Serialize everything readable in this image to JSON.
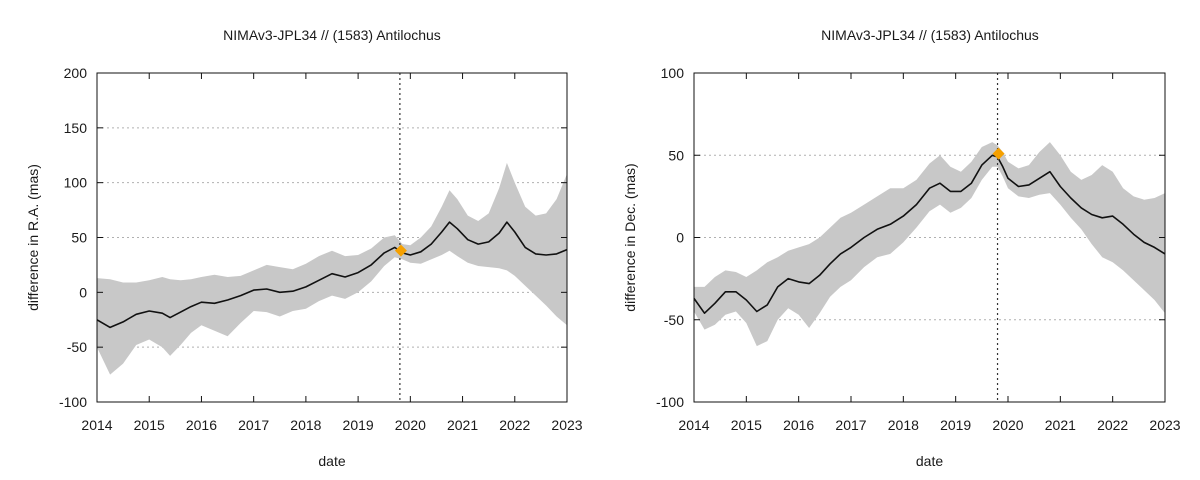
{
  "chart_data": [
    {
      "type": "line",
      "title": "NIMAv3-JPL34 // (1583) Antilochus",
      "xlabel": "date",
      "ylabel": "difference in R.A. (mas)",
      "xlim": [
        2014,
        2023
      ],
      "ylim": [
        -100,
        200
      ],
      "xticks": [
        "2014",
        "2015",
        "2016",
        "2017",
        "2018",
        "2019",
        "2020",
        "2021",
        "2022",
        "2023"
      ],
      "yticks": [
        "-100",
        "-50",
        "0",
        "50",
        "100",
        "150",
        "200"
      ],
      "grid": "horizontal dotted",
      "vline_x": 2019.8,
      "marker": {
        "x": 2019.82,
        "y": 38,
        "color": "#f5a000"
      },
      "band_color": "#c8c8c8",
      "line_color": "#111111",
      "series": [
        {
          "name": "difference",
          "x": [
            2014.0,
            2014.25,
            2014.5,
            2014.75,
            2015.0,
            2015.25,
            2015.4,
            2015.6,
            2015.8,
            2016.0,
            2016.25,
            2016.5,
            2016.75,
            2017.0,
            2017.25,
            2017.5,
            2017.75,
            2018.0,
            2018.25,
            2018.5,
            2018.75,
            2019.0,
            2019.25,
            2019.5,
            2019.7,
            2019.85,
            2020.0,
            2020.2,
            2020.4,
            2020.6,
            2020.75,
            2020.9,
            2021.1,
            2021.3,
            2021.5,
            2021.7,
            2021.85,
            2022.0,
            2022.2,
            2022.4,
            2022.6,
            2022.8,
            2023.0
          ],
          "y": [
            -25,
            -32,
            -27,
            -20,
            -17,
            -19,
            -23,
            -18,
            -13,
            -9,
            -10,
            -7,
            -3,
            2,
            3,
            0,
            1,
            5,
            11,
            17,
            14,
            18,
            25,
            36,
            41,
            36,
            34,
            37,
            44,
            55,
            64,
            58,
            48,
            44,
            46,
            54,
            64,
            55,
            41,
            35,
            34,
            35,
            39
          ]
        },
        {
          "name": "upper",
          "x": [
            2014.0,
            2014.25,
            2014.5,
            2014.75,
            2015.0,
            2015.25,
            2015.4,
            2015.6,
            2015.8,
            2016.0,
            2016.25,
            2016.5,
            2016.75,
            2017.0,
            2017.25,
            2017.5,
            2017.75,
            2018.0,
            2018.25,
            2018.5,
            2018.75,
            2019.0,
            2019.25,
            2019.5,
            2019.7,
            2019.85,
            2020.0,
            2020.2,
            2020.4,
            2020.6,
            2020.75,
            2020.9,
            2021.1,
            2021.3,
            2021.5,
            2021.7,
            2021.85,
            2022.0,
            2022.2,
            2022.4,
            2022.6,
            2022.8,
            2023.0
          ],
          "y": [
            13,
            12,
            9,
            9,
            11,
            14,
            12,
            11,
            12,
            14,
            16,
            14,
            15,
            20,
            25,
            23,
            21,
            26,
            33,
            38,
            33,
            34,
            40,
            50,
            52,
            44,
            43,
            50,
            60,
            78,
            93,
            85,
            70,
            65,
            72,
            95,
            118,
            100,
            78,
            70,
            72,
            85,
            108
          ]
        },
        {
          "name": "lower",
          "x": [
            2014.0,
            2014.25,
            2014.5,
            2014.75,
            2015.0,
            2015.25,
            2015.4,
            2015.6,
            2015.8,
            2016.0,
            2016.25,
            2016.5,
            2016.75,
            2017.0,
            2017.25,
            2017.5,
            2017.75,
            2018.0,
            2018.25,
            2018.5,
            2018.75,
            2019.0,
            2019.25,
            2019.5,
            2019.7,
            2019.85,
            2020.0,
            2020.2,
            2020.4,
            2020.6,
            2020.75,
            2020.9,
            2021.1,
            2021.3,
            2021.5,
            2021.7,
            2021.85,
            2022.0,
            2022.2,
            2022.4,
            2022.6,
            2022.8,
            2023.0
          ],
          "y": [
            -50,
            -75,
            -65,
            -48,
            -43,
            -50,
            -58,
            -48,
            -37,
            -30,
            -35,
            -40,
            -28,
            -17,
            -18,
            -22,
            -17,
            -15,
            -8,
            -3,
            -6,
            0,
            10,
            24,
            32,
            30,
            27,
            26,
            30,
            34,
            38,
            33,
            27,
            24,
            23,
            22,
            20,
            15,
            6,
            -3,
            -12,
            -22,
            -30
          ]
        }
      ]
    },
    {
      "type": "line",
      "title": "NIMAv3-JPL34 // (1583) Antilochus",
      "xlabel": "date",
      "ylabel": "difference in Dec. (mas)",
      "xlim": [
        2014,
        2023
      ],
      "ylim": [
        -100,
        100
      ],
      "xticks": [
        "2014",
        "2015",
        "2016",
        "2017",
        "2018",
        "2019",
        "2020",
        "2021",
        "2022",
        "2023"
      ],
      "yticks": [
        "-100",
        "-50",
        "0",
        "50",
        "100"
      ],
      "grid": "horizontal dotted",
      "vline_x": 2019.8,
      "marker": {
        "x": 2019.82,
        "y": 51,
        "color": "#f5a000"
      },
      "band_color": "#c8c8c8",
      "line_color": "#111111",
      "series": [
        {
          "name": "difference",
          "x": [
            2014.0,
            2014.2,
            2014.4,
            2014.6,
            2014.8,
            2015.0,
            2015.2,
            2015.4,
            2015.6,
            2015.8,
            2016.0,
            2016.2,
            2016.4,
            2016.6,
            2016.8,
            2017.0,
            2017.25,
            2017.5,
            2017.75,
            2018.0,
            2018.25,
            2018.5,
            2018.7,
            2018.9,
            2019.1,
            2019.3,
            2019.5,
            2019.7,
            2019.8,
            2019.9,
            2020.0,
            2020.2,
            2020.4,
            2020.6,
            2020.8,
            2021.0,
            2021.2,
            2021.4,
            2021.6,
            2021.8,
            2022.0,
            2022.2,
            2022.4,
            2022.6,
            2022.8,
            2023.0
          ],
          "y": [
            -37,
            -46,
            -40,
            -33,
            -33,
            -38,
            -45,
            -41,
            -30,
            -25,
            -27,
            -28,
            -23,
            -16,
            -10,
            -6,
            0,
            5,
            8,
            13,
            20,
            30,
            33,
            28,
            28,
            33,
            44,
            50,
            49,
            43,
            36,
            31,
            32,
            36,
            40,
            31,
            24,
            18,
            14,
            12,
            13,
            8,
            2,
            -3,
            -6,
            -10
          ]
        },
        {
          "name": "upper",
          "x": [
            2014.0,
            2014.2,
            2014.4,
            2014.6,
            2014.8,
            2015.0,
            2015.2,
            2015.4,
            2015.6,
            2015.8,
            2016.0,
            2016.2,
            2016.4,
            2016.6,
            2016.8,
            2017.0,
            2017.25,
            2017.5,
            2017.75,
            2018.0,
            2018.25,
            2018.5,
            2018.7,
            2018.9,
            2019.1,
            2019.3,
            2019.5,
            2019.7,
            2019.8,
            2019.9,
            2020.0,
            2020.2,
            2020.4,
            2020.6,
            2020.8,
            2021.0,
            2021.2,
            2021.4,
            2021.6,
            2021.8,
            2022.0,
            2022.2,
            2022.4,
            2022.6,
            2022.8,
            2023.0
          ],
          "y": [
            -30,
            -30,
            -24,
            -20,
            -21,
            -24,
            -20,
            -15,
            -12,
            -8,
            -6,
            -4,
            0,
            6,
            12,
            15,
            20,
            25,
            30,
            30,
            35,
            45,
            50,
            43,
            40,
            46,
            55,
            58,
            56,
            52,
            46,
            42,
            44,
            52,
            58,
            50,
            40,
            35,
            38,
            44,
            40,
            30,
            25,
            23,
            24,
            27
          ]
        },
        {
          "name": "lower",
          "x": [
            2014.0,
            2014.2,
            2014.4,
            2014.6,
            2014.8,
            2015.0,
            2015.2,
            2015.4,
            2015.6,
            2015.8,
            2016.0,
            2016.2,
            2016.4,
            2016.6,
            2016.8,
            2017.0,
            2017.25,
            2017.5,
            2017.75,
            2018.0,
            2018.25,
            2018.5,
            2018.7,
            2018.9,
            2019.1,
            2019.3,
            2019.5,
            2019.7,
            2019.8,
            2019.9,
            2020.0,
            2020.2,
            2020.4,
            2020.6,
            2020.8,
            2021.0,
            2021.2,
            2021.4,
            2021.6,
            2021.8,
            2022.0,
            2022.2,
            2022.4,
            2022.6,
            2022.8,
            2023.0
          ],
          "y": [
            -45,
            -56,
            -53,
            -47,
            -45,
            -52,
            -66,
            -63,
            -50,
            -43,
            -47,
            -55,
            -46,
            -36,
            -30,
            -26,
            -18,
            -12,
            -10,
            -3,
            6,
            16,
            20,
            15,
            18,
            24,
            35,
            43,
            43,
            37,
            30,
            25,
            24,
            26,
            27,
            20,
            12,
            5,
            -4,
            -12,
            -15,
            -20,
            -26,
            -32,
            -38,
            -46
          ]
        }
      ]
    }
  ]
}
